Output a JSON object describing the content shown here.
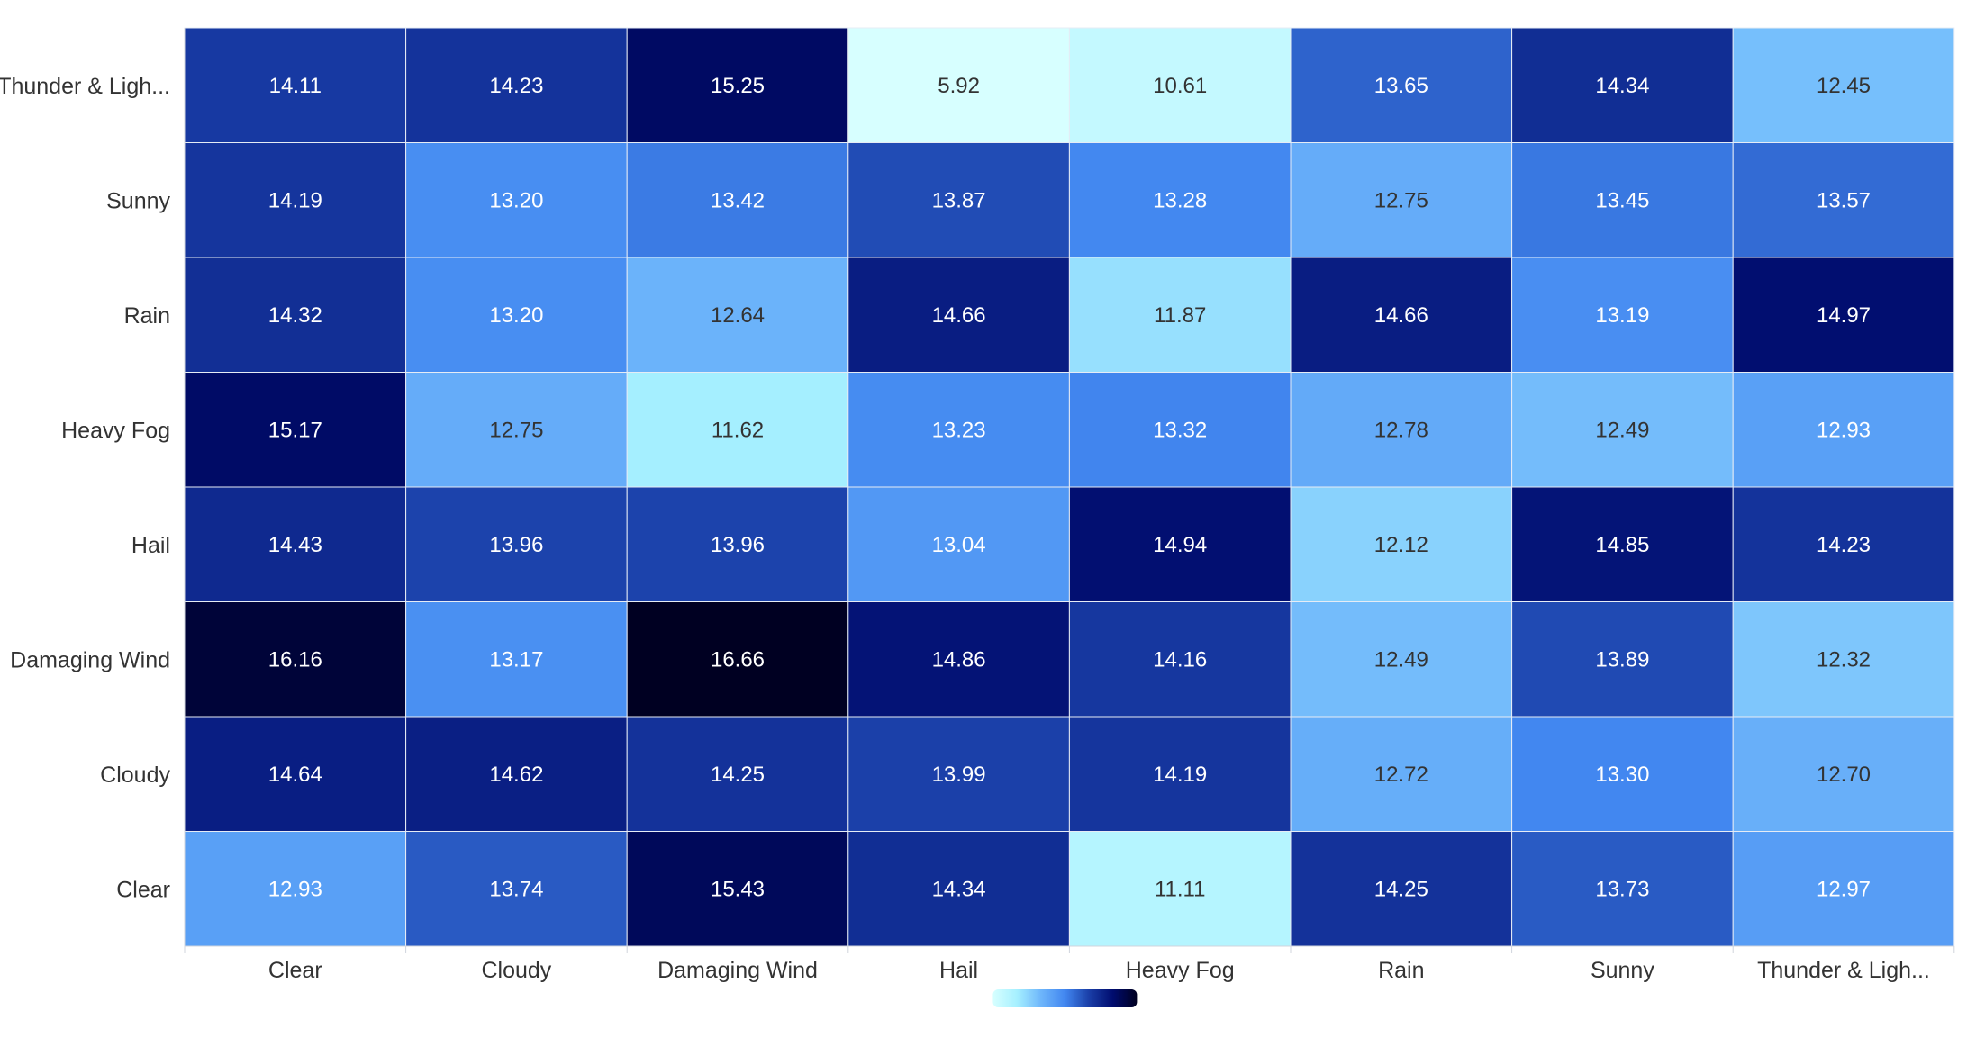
{
  "chart_data": {
    "type": "heatmap",
    "title": "",
    "xlabel": "",
    "ylabel": "",
    "x_categories": [
      "Clear",
      "Cloudy",
      "Damaging Wind",
      "Hail",
      "Heavy Fog",
      "Rain",
      "Sunny",
      "Thunder & Ligh..."
    ],
    "y_categories_top_to_bottom": [
      "Thunder & Ligh...",
      "Sunny",
      "Rain",
      "Heavy Fog",
      "Hail",
      "Damaging Wind",
      "Cloudy",
      "Clear"
    ],
    "values_top_to_bottom": [
      [
        14.11,
        14.23,
        15.25,
        5.92,
        10.61,
        13.65,
        14.34,
        12.45
      ],
      [
        14.19,
        13.2,
        13.42,
        13.87,
        13.28,
        12.75,
        13.45,
        13.57
      ],
      [
        14.32,
        13.2,
        12.64,
        14.66,
        11.87,
        14.66,
        13.19,
        14.97
      ],
      [
        15.17,
        12.75,
        11.62,
        13.23,
        13.32,
        12.78,
        12.49,
        12.93
      ],
      [
        14.43,
        13.96,
        13.96,
        13.04,
        14.94,
        12.12,
        14.85,
        14.23
      ],
      [
        16.16,
        13.17,
        16.66,
        14.86,
        14.16,
        12.49,
        13.89,
        12.32
      ],
      [
        14.64,
        14.62,
        14.25,
        13.99,
        14.19,
        12.72,
        13.3,
        12.7
      ],
      [
        12.93,
        13.74,
        15.43,
        14.34,
        11.11,
        14.25,
        13.73,
        12.97
      ]
    ],
    "value_format_decimals": 2,
    "color_scale": [
      "#d7ffff",
      "#a6f0ff",
      "#6eb6fb",
      "#4287f0",
      "#1a3fa8",
      "#000c6e",
      "#000020"
    ],
    "color_scale_stops": [
      10.0,
      11.6,
      12.6,
      13.3,
      14.0,
      15.0,
      16.7
    ],
    "legend": {
      "type": "continuous-gradient",
      "placement": "bottom-center"
    },
    "grid": false
  }
}
